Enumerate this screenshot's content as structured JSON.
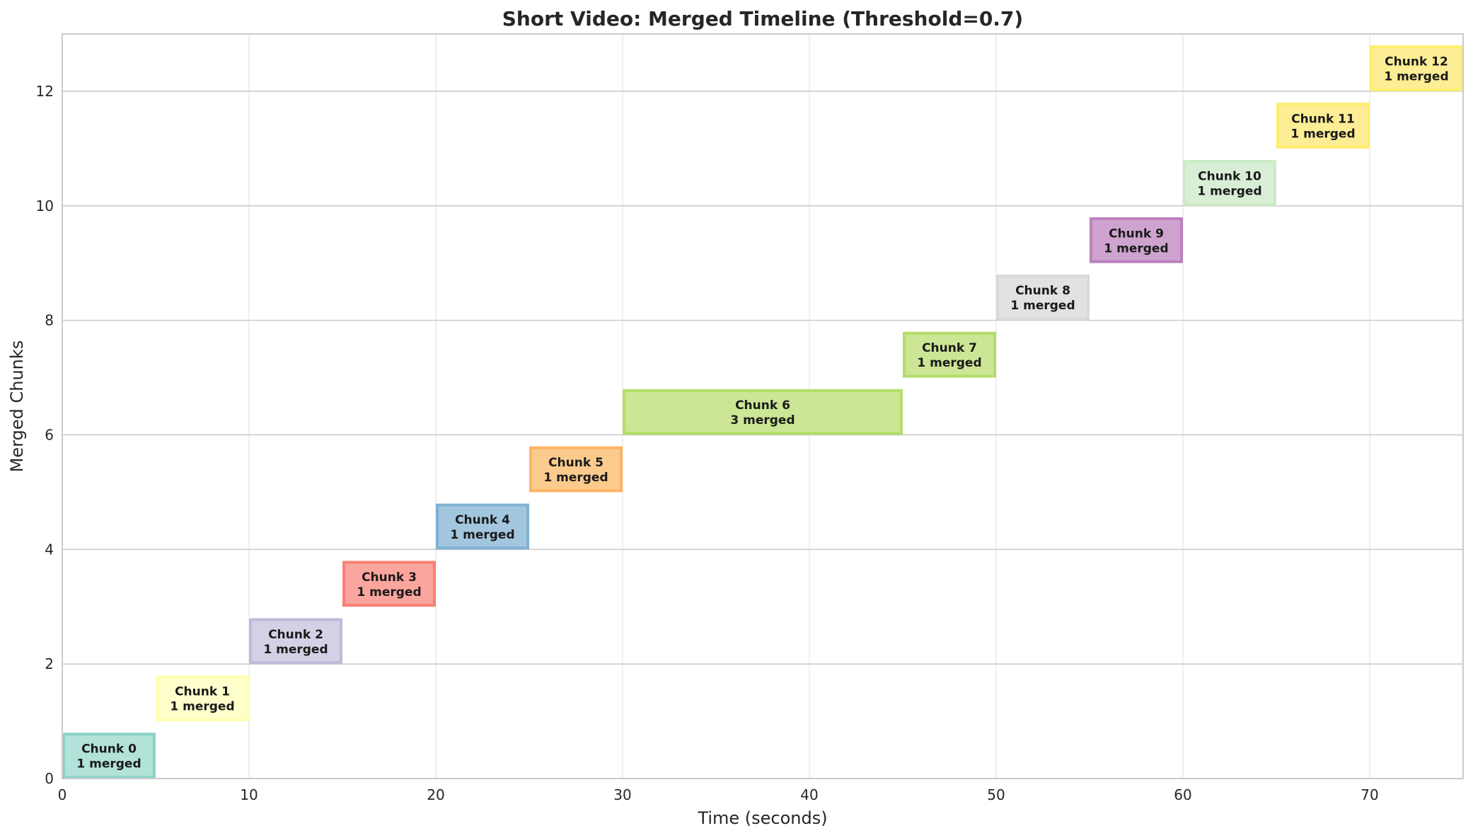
{
  "chart_data": {
    "type": "bar",
    "orientation": "horizontal",
    "title": "Short Video: Merged Timeline (Threshold=0.7)",
    "xlabel": "Time (seconds)",
    "ylabel": "Merged Chunks",
    "xlim": [
      0,
      75
    ],
    "ylim": [
      0,
      13
    ],
    "xticks": [
      0,
      10,
      20,
      30,
      40,
      50,
      60,
      70
    ],
    "yticks": [
      0,
      2,
      4,
      6,
      8,
      10,
      12
    ],
    "grid": true,
    "legend": "none",
    "bar_height": 0.8,
    "bars": [
      {
        "label": "Chunk 0",
        "sublabel": "1 merged",
        "y": 0,
        "start": 0,
        "end": 5,
        "fill": "#b3e2d9",
        "edge": "#8dd3c7"
      },
      {
        "label": "Chunk 1",
        "sublabel": "1 merged",
        "y": 1,
        "start": 5,
        "end": 10,
        "fill": "#ffffcc",
        "edge": "#ffffb3"
      },
      {
        "label": "Chunk 2",
        "sublabel": "1 merged",
        "y": 2,
        "start": 10,
        "end": 15,
        "fill": "#d3d1e6",
        "edge": "#bebada"
      },
      {
        "label": "Chunk 3",
        "sublabel": "1 merged",
        "y": 3,
        "start": 15,
        "end": 20,
        "fill": "#faa59d",
        "edge": "#fb8072"
      },
      {
        "label": "Chunk 4",
        "sublabel": "1 merged",
        "y": 4,
        "start": 20,
        "end": 25,
        "fill": "#a3c6df",
        "edge": "#80b1d3"
      },
      {
        "label": "Chunk 5",
        "sublabel": "1 merged",
        "y": 5,
        "start": 25,
        "end": 30,
        "fill": "#fbcb8e",
        "edge": "#fdb462"
      },
      {
        "label": "Chunk 6",
        "sublabel": "3 merged",
        "y": 6,
        "start": 30,
        "end": 45,
        "fill": "#cce695",
        "edge": "#b3de69"
      },
      {
        "label": "Chunk 7",
        "sublabel": "1 merged",
        "y": 7,
        "start": 45,
        "end": 50,
        "fill": "#cce695",
        "edge": "#b3de69"
      },
      {
        "label": "Chunk 8",
        "sublabel": "1 merged",
        "y": 8,
        "start": 50,
        "end": 55,
        "fill": "#e2e2e2",
        "edge": "#d9d9d9"
      },
      {
        "label": "Chunk 9",
        "sublabel": "1 merged",
        "y": 9,
        "start": 55,
        "end": 60,
        "fill": "#cea3cf",
        "edge": "#bc80bd"
      },
      {
        "label": "Chunk 10",
        "sublabel": "1 merged",
        "y": 10,
        "start": 60,
        "end": 65,
        "fill": "#d9eed7",
        "edge": "#ccebc5"
      },
      {
        "label": "Chunk 11",
        "sublabel": "1 merged",
        "y": 11,
        "start": 65,
        "end": 70,
        "fill": "#fdee95",
        "edge": "#ffed6f"
      },
      {
        "label": "Chunk 12",
        "sublabel": "1 merged",
        "y": 12,
        "start": 70,
        "end": 75,
        "fill": "#fdee95",
        "edge": "#ffed6f"
      }
    ],
    "colors": {
      "axes_edge": "#cccccc",
      "grid": "#ebebeb",
      "text": "#262626",
      "bar_text": "#1a1a1a",
      "title": "#262626"
    }
  }
}
